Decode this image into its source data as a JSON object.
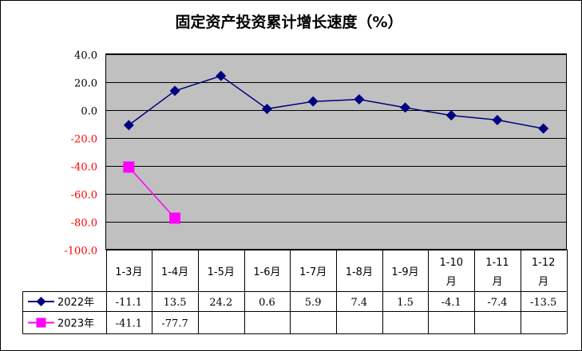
{
  "chart_data": {
    "type": "line",
    "title": "固定资产投资累计增长速度（%）",
    "categories": [
      "1-3月",
      "1-4月",
      "1-5月",
      "1-6月",
      "1-7月",
      "1-8月",
      "1-9月",
      "1-10月",
      "1-11月",
      "1-12月"
    ],
    "category_lines": [
      [
        "1-3月"
      ],
      [
        "1-4月"
      ],
      [
        "1-5月"
      ],
      [
        "1-6月"
      ],
      [
        "1-7月"
      ],
      [
        "1-8月"
      ],
      [
        "1-9月"
      ],
      [
        "1-10",
        "月"
      ],
      [
        "1-11",
        "月"
      ],
      [
        "1-12",
        "月"
      ]
    ],
    "series": [
      {
        "name": "2022年",
        "values": [
          -11.1,
          13.5,
          24.2,
          0.6,
          5.9,
          7.4,
          1.5,
          -4.1,
          -7.4,
          -13.5
        ],
        "labels": [
          "-11.1",
          "13.5",
          "24.2",
          "0.6",
          "5.9",
          "7.4",
          "1.5",
          "-4.1",
          "-7.4",
          "-13.5"
        ],
        "color": "#000080",
        "marker": "diamond"
      },
      {
        "name": "2023年",
        "values": [
          -41.1,
          -77.7,
          null,
          null,
          null,
          null,
          null,
          null,
          null,
          null
        ],
        "labels": [
          "-41.1",
          "-77.7",
          "",
          "",
          "",
          "",
          "",
          "",
          "",
          ""
        ],
        "color": "#ff00ff",
        "marker": "square"
      }
    ],
    "ylim": [
      -100,
      40
    ],
    "y_ticks": [
      40,
      20,
      0,
      -20,
      -40,
      -60,
      -80,
      -100
    ],
    "y_tick_labels": [
      "40.0",
      "20.0",
      "0.0",
      "-20.0",
      "-40.0",
      "-60.0",
      "-80.0",
      "-100.0"
    ],
    "negative_tick_color": "#ff0000",
    "plot_background": "#c0c0c0",
    "grid": true,
    "legend": "data table"
  }
}
